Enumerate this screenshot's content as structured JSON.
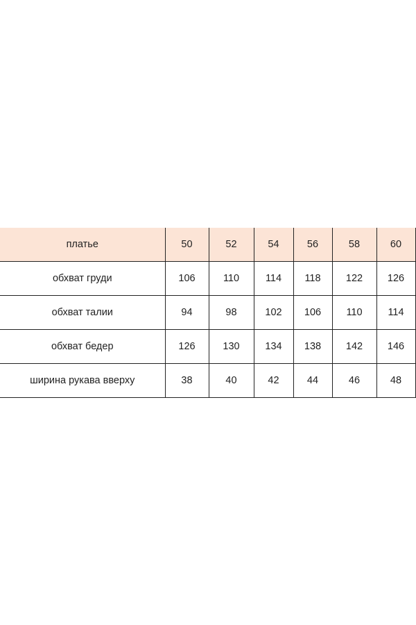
{
  "table": {
    "header": [
      "платье",
      "50",
      "52",
      "54",
      "56",
      "58",
      "60"
    ],
    "rows": [
      [
        "обхват груди",
        "106",
        "110",
        "114",
        "118",
        "122",
        "126"
      ],
      [
        "обхват талии",
        "94",
        "98",
        "102",
        "106",
        "110",
        "114"
      ],
      [
        "обхват бедер",
        "126",
        "130",
        "134",
        "138",
        "142",
        "146"
      ],
      [
        "ширина рукава вверху",
        "38",
        "40",
        "42",
        "44",
        "46",
        "48"
      ]
    ],
    "header_bg": "#fce4d6"
  }
}
